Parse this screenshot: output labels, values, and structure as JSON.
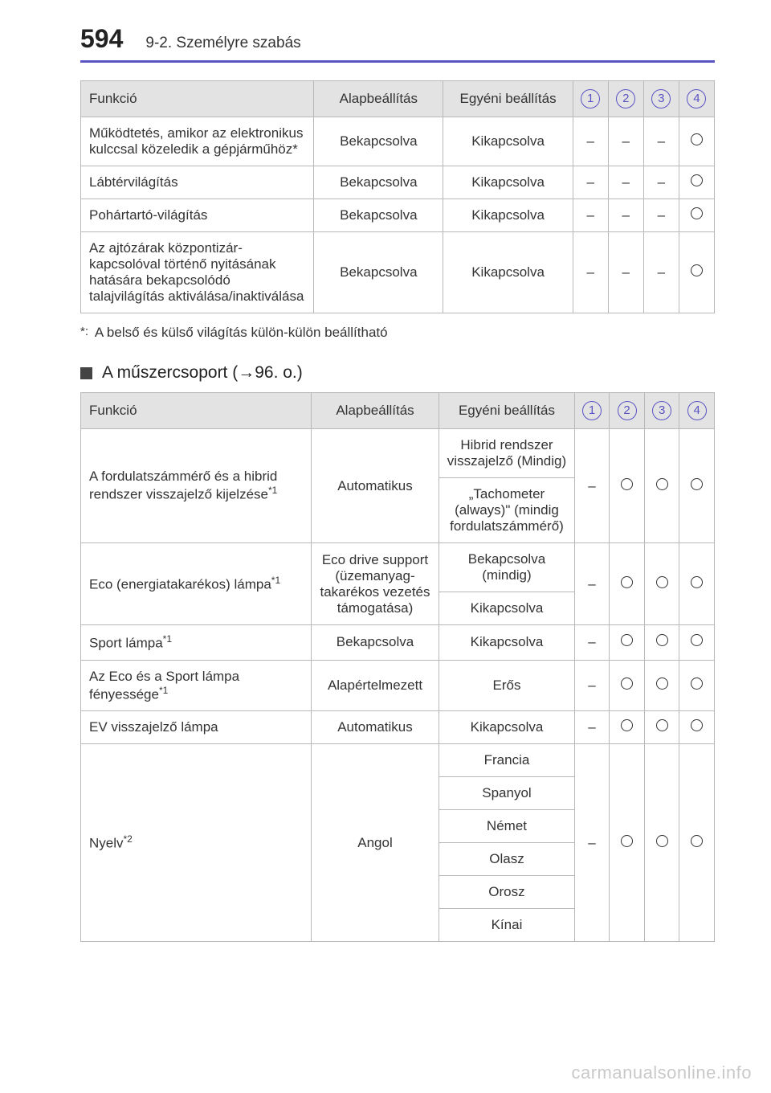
{
  "page_number": "594",
  "section_label": "9-2. Személyre szabás",
  "table1": {
    "headers": {
      "function": "Funkció",
      "default": "Alapbeállítás",
      "custom": "Egyéni beállítás",
      "nums": [
        "1",
        "2",
        "3",
        "4"
      ]
    },
    "rows": [
      {
        "fn": "Működtetés, amikor az elektronikus kulccsal közeledik a gépjárműhöz*",
        "def": "Bekapcsolva",
        "cus": "Kikapcsolva",
        "marks": [
          "–",
          "–",
          "–",
          "O"
        ]
      },
      {
        "fn": "Lábtérvilágítás",
        "def": "Bekapcsolva",
        "cus": "Kikapcsolva",
        "marks": [
          "–",
          "–",
          "–",
          "O"
        ]
      },
      {
        "fn": "Pohártartó-világítás",
        "def": "Bekapcsolva",
        "cus": "Kikapcsolva",
        "marks": [
          "–",
          "–",
          "–",
          "O"
        ]
      },
      {
        "fn": "Az ajtózárak központizár-kapcsolóval történő nyitásának hatására bekapcsolódó talajvilágítás aktiválása/inaktiválása",
        "def": "Bekapcsolva",
        "cus": "Kikapcsolva",
        "marks": [
          "–",
          "–",
          "–",
          "O"
        ]
      }
    ]
  },
  "footnote1": "A belső és külső világítás külön-külön beállítható",
  "subheading": "A műszercsoport (→96. o.)",
  "table2": {
    "headers": {
      "function": "Funkció",
      "default": "Alapbeállítás",
      "custom": "Egyéni beállítás",
      "nums": [
        "1",
        "2",
        "3",
        "4"
      ]
    },
    "row_tach": {
      "fn": "A fordulatszámmérő és a hibrid rendszer visszajelző kijelzése",
      "fn_sup": "*1",
      "def": "Automatikus",
      "cus1": "Hibrid rendszer visszajelző (Mindig)",
      "cus2": "„Tachometer (always)\" (mindig fordulatszámmérő)",
      "marks": [
        "–",
        "O",
        "O",
        "O"
      ]
    },
    "row_eco": {
      "fn": "Eco (energiatakarékos) lámpa",
      "fn_sup": "*1",
      "def": "Eco drive support (üzemanyag-takarékos vezetés támogatása)",
      "cus1": "Bekapcsolva (mindig)",
      "cus2": "Kikapcsolva",
      "marks": [
        "–",
        "O",
        "O",
        "O"
      ]
    },
    "row_sport": {
      "fn": "Sport lámpa",
      "fn_sup": "*1",
      "def": "Bekapcsolva",
      "cus": "Kikapcsolva",
      "marks": [
        "–",
        "O",
        "O",
        "O"
      ]
    },
    "row_bright": {
      "fn": "Az Eco és a Sport lámpa fényessége",
      "fn_sup": "*1",
      "def": "Alapértelmezett",
      "cus": "Erős",
      "marks": [
        "–",
        "O",
        "O",
        "O"
      ]
    },
    "row_ev": {
      "fn": "EV visszajelző lámpa",
      "def": "Automatikus",
      "cus": "Kikapcsolva",
      "marks": [
        "–",
        "O",
        "O",
        "O"
      ]
    },
    "row_lang": {
      "fn": "Nyelv",
      "fn_sup": "*2",
      "def": "Angol",
      "options": [
        "Francia",
        "Spanyol",
        "Német",
        "Olasz",
        "Orosz",
        "Kínai"
      ],
      "marks": [
        "–",
        "O",
        "O",
        "O"
      ]
    }
  },
  "watermark": "carmanualsonline.info",
  "colors": {
    "accent": "#5a53c4",
    "header_bg": "#e3e3e3",
    "border": "#b8b8b8",
    "text": "#333333",
    "watermark": "#c9c9c9"
  }
}
